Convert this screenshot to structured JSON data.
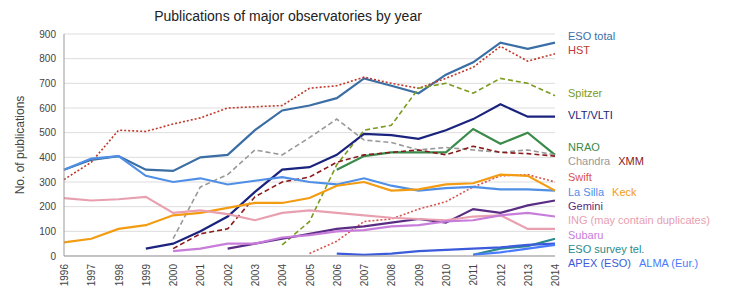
{
  "chart_data": {
    "type": "line",
    "title": "Publications of major observatories by year",
    "y_label": "No. of publications",
    "categories": [
      "1996",
      "1997",
      "1998",
      "1999",
      "2000",
      "2001",
      "2002",
      "2003",
      "2004",
      "2005",
      "2006",
      "2007",
      "2008",
      "2009",
      "2010",
      "2011",
      "2012",
      "2013",
      "2014"
    ],
    "ylim": [
      0,
      900
    ],
    "yticks": [
      0,
      100,
      200,
      300,
      400,
      500,
      600,
      700,
      800,
      900
    ],
    "grid": true,
    "series": [
      {
        "name": "ESO total",
        "color": "#3a6ea5",
        "line_style": "solid",
        "values": [
          350,
          390,
          405,
          350,
          345,
          400,
          410,
          510,
          590,
          610,
          640,
          720,
          690,
          660,
          735,
          785,
          865,
          840,
          865
        ]
      },
      {
        "name": "HST",
        "color": "#c0392b",
        "line_style": "dotted",
        "values": [
          310,
          380,
          510,
          505,
          535,
          560,
          600,
          605,
          610,
          680,
          690,
          725,
          700,
          680,
          720,
          765,
          850,
          790,
          820
        ]
      },
      {
        "name": "Spitzer",
        "color": "#7a9a20",
        "line_style": "dashed",
        "values": [
          null,
          null,
          null,
          null,
          null,
          null,
          null,
          null,
          45,
          140,
          370,
          510,
          530,
          680,
          700,
          660,
          720,
          700,
          650
        ]
      },
      {
        "name": "VLT/VLTI",
        "color": "#1a237e",
        "line_style": "solid",
        "values": [
          null,
          null,
          null,
          30,
          50,
          100,
          160,
          260,
          350,
          360,
          410,
          495,
          490,
          475,
          510,
          555,
          615,
          565,
          565
        ]
      },
      {
        "name": "NRAO",
        "color": "#3a8a4a",
        "line_style": "solid",
        "values": [
          null,
          null,
          null,
          null,
          null,
          null,
          null,
          null,
          null,
          null,
          350,
          405,
          420,
          420,
          420,
          515,
          455,
          500,
          410
        ]
      },
      {
        "name": "Chandra",
        "color": "#999999",
        "line_style": "dashed",
        "values": [
          null,
          null,
          null,
          null,
          70,
          280,
          330,
          430,
          410,
          480,
          555,
          470,
          460,
          430,
          440,
          430,
          420,
          430,
          410
        ]
      },
      {
        "name": "XMM",
        "color": "#8b1a1a",
        "line_style": "dashed",
        "values": [
          null,
          null,
          null,
          null,
          30,
          90,
          110,
          240,
          300,
          320,
          380,
          410,
          420,
          430,
          410,
          445,
          420,
          415,
          405
        ]
      },
      {
        "name": "Swift",
        "color": "#d9534f",
        "line_style": "dotted",
        "values": [
          null,
          null,
          null,
          null,
          null,
          null,
          null,
          null,
          null,
          10,
          60,
          140,
          150,
          190,
          220,
          280,
          325,
          330,
          300
        ]
      },
      {
        "name": "La Silla",
        "color": "#4f8fe6",
        "line_style": "solid",
        "values": [
          350,
          395,
          405,
          325,
          300,
          315,
          290,
          305,
          320,
          300,
          290,
          315,
          285,
          265,
          275,
          280,
          270,
          270,
          265
        ]
      },
      {
        "name": "Keck",
        "color": "#f39c12",
        "line_style": "solid",
        "values": [
          55,
          70,
          110,
          125,
          165,
          175,
          195,
          215,
          215,
          235,
          285,
          300,
          265,
          270,
          290,
          295,
          330,
          325,
          265
        ]
      },
      {
        "name": "Gemini",
        "color": "#5b2c83",
        "line_style": "solid",
        "values": [
          null,
          null,
          null,
          null,
          null,
          null,
          30,
          50,
          70,
          90,
          110,
          120,
          135,
          150,
          135,
          190,
          175,
          205,
          225
        ]
      },
      {
        "name": "ING (may contain duplicates)",
        "color": "#e8a0b0",
        "line_style": "solid",
        "values": [
          235,
          225,
          230,
          240,
          175,
          185,
          170,
          145,
          175,
          185,
          175,
          165,
          155,
          150,
          145,
          160,
          165,
          110,
          110
        ]
      },
      {
        "name": "Subaru",
        "color": "#c77dd9",
        "line_style": "solid",
        "values": [
          null,
          null,
          null,
          null,
          20,
          30,
          50,
          50,
          75,
          85,
          100,
          105,
          120,
          125,
          140,
          145,
          165,
          175,
          160
        ]
      },
      {
        "name": "ESO survey tel.",
        "color": "#2a8a8a",
        "line_style": "solid",
        "values": [
          null,
          null,
          null,
          null,
          null,
          null,
          null,
          null,
          null,
          null,
          null,
          null,
          null,
          null,
          null,
          5,
          30,
          40,
          70
        ]
      },
      {
        "name": "APEX (ESO)",
        "color": "#3b5bdb",
        "line_style": "solid",
        "values": [
          null,
          null,
          null,
          null,
          null,
          null,
          null,
          null,
          null,
          null,
          10,
          5,
          10,
          20,
          25,
          30,
          35,
          45,
          50
        ]
      },
      {
        "name": "ALMA (Eur.)",
        "color": "#4a7aff",
        "line_style": "solid",
        "values": [
          null,
          null,
          null,
          null,
          null,
          null,
          null,
          null,
          null,
          null,
          null,
          null,
          null,
          null,
          null,
          5,
          15,
          30,
          45
        ]
      }
    ]
  }
}
